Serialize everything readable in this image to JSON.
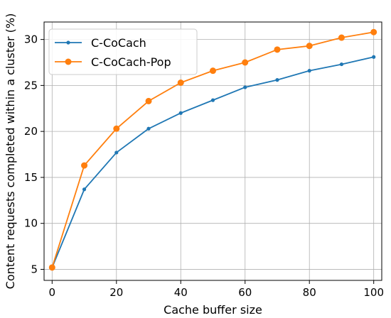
{
  "chart_data": {
    "type": "line",
    "title": "",
    "xlabel": "Cache buffer size",
    "ylabel": "Content requests completed within a cluster (%)",
    "x": [
      0,
      10,
      20,
      30,
      40,
      50,
      60,
      70,
      80,
      90,
      100
    ],
    "xlim": [
      -2.5,
      102.5
    ],
    "ylim": [
      3.8,
      31.9
    ],
    "xticks": [
      0,
      20,
      40,
      60,
      80,
      100
    ],
    "yticks": [
      5,
      10,
      15,
      20,
      25,
      30
    ],
    "xtick_labels": [
      "0",
      "20",
      "40",
      "60",
      "80",
      "100"
    ],
    "ytick_labels": [
      "5",
      "10",
      "15",
      "20",
      "25",
      "30"
    ],
    "grid": true,
    "legend_position": "top-left",
    "series": [
      {
        "name": "C-CoCach",
        "color": "#1f77b4",
        "marker": "small-dot",
        "values": [
          5.2,
          13.7,
          17.7,
          20.3,
          22.0,
          23.4,
          24.8,
          25.6,
          26.6,
          27.3,
          28.1
        ]
      },
      {
        "name": "C-CoCach-Pop",
        "color": "#ff7f0e",
        "marker": "large-dot",
        "values": [
          5.2,
          16.3,
          20.3,
          23.3,
          25.3,
          26.6,
          27.5,
          28.9,
          29.3,
          30.2,
          30.8
        ]
      }
    ]
  }
}
